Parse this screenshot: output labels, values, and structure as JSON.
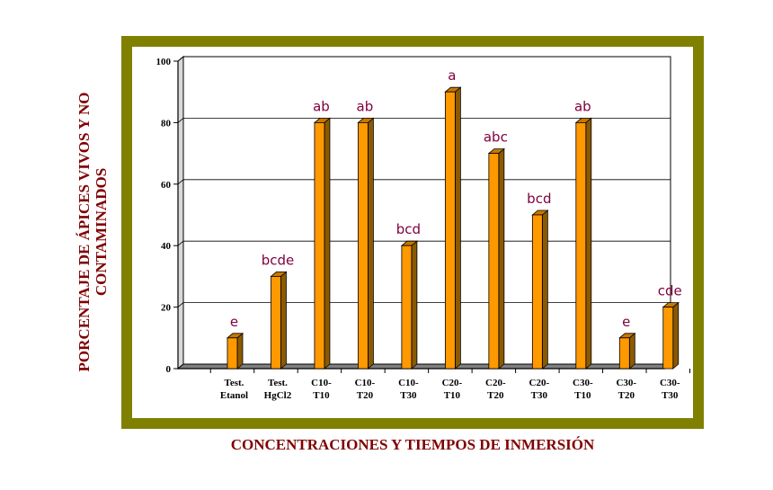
{
  "chart_data": {
    "type": "bar",
    "ylabel": "PORCENTAJE DE ÁPICES VIVOS Y NO CONTAMINADOS",
    "xlabel": "CONCENTRACIONES Y TIEMPOS DE INMERSIÓN",
    "ylim": [
      0,
      100
    ],
    "yticks": [
      0,
      20,
      40,
      60,
      80,
      100
    ],
    "grid": true,
    "categories": [
      [
        "Test.",
        "Etanol"
      ],
      [
        "Test.",
        "HgCl2"
      ],
      [
        "C10-",
        "T10"
      ],
      [
        "C10-",
        "T20"
      ],
      [
        "C10-",
        "T30"
      ],
      [
        "C20-",
        "T10"
      ],
      [
        "C20-",
        "T20"
      ],
      [
        "C20-",
        "T30"
      ],
      [
        "C30-",
        "T10"
      ],
      [
        "C30-",
        "T20"
      ],
      [
        "C30-",
        "T30"
      ]
    ],
    "values": [
      10,
      30,
      80,
      80,
      40,
      90,
      70,
      50,
      80,
      10,
      20
    ],
    "annotations": [
      "e",
      "bcde",
      "ab",
      "ab",
      "bcd",
      "a",
      "abc",
      "bcd",
      "ab",
      "e",
      "cde"
    ],
    "colors": {
      "bar_front": "#ff9900",
      "bar_side": "#8b5a00",
      "bar_top": "#c87800",
      "frame": "#808000",
      "label": "#800000",
      "annotation": "#800040"
    }
  }
}
